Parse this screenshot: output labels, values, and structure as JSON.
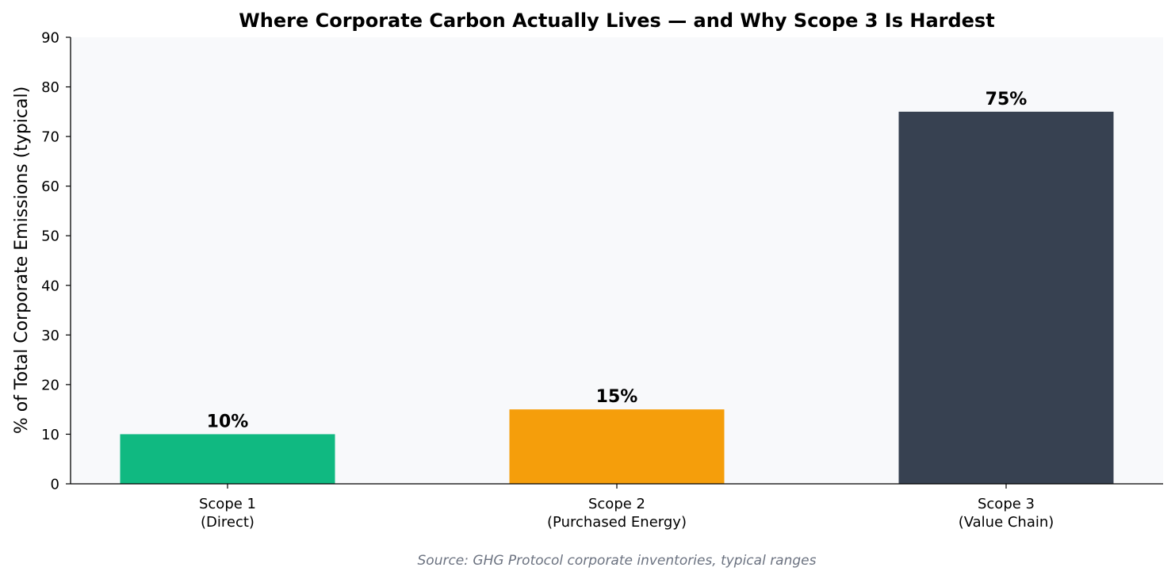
{
  "chart_data": {
    "type": "bar",
    "title": "Where Corporate Carbon Actually Lives — and Why Scope 3 Is Hardest",
    "xlabel": "",
    "ylabel": "% of Total Corporate Emissions (typical)",
    "categories": [
      [
        "Scope 1",
        "(Direct)"
      ],
      [
        "Scope 2",
        "(Purchased Energy)"
      ],
      [
        "Scope 3",
        "(Value Chain)"
      ]
    ],
    "values": [
      10,
      15,
      75
    ],
    "data_labels": [
      "10%",
      "15%",
      "75%"
    ],
    "colors": [
      "#10b981",
      "#f59e0b",
      "#374151"
    ],
    "ylim": [
      0,
      90
    ],
    "yticks": [
      0,
      10,
      20,
      30,
      40,
      50,
      60,
      70,
      80,
      90
    ],
    "grid": false,
    "plot_background": "#f8f9fb",
    "source": "Source: GHG Protocol corporate inventories, typical ranges"
  }
}
